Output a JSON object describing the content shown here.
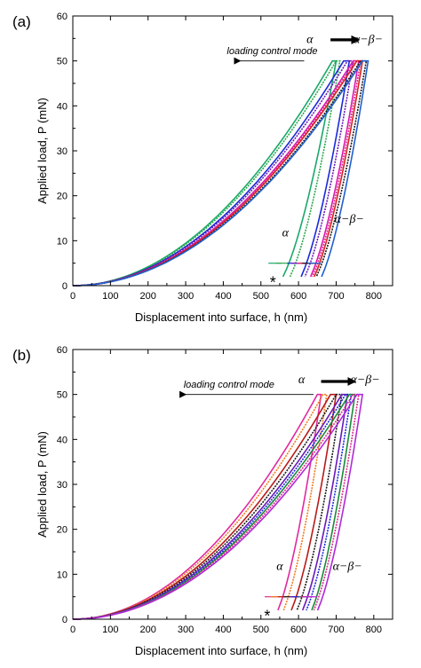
{
  "chart_data": [
    {
      "type": "line",
      "panel_label": "(a)",
      "xlabel": "Displacement into surface, h (nm)",
      "ylabel": "Applied load, P (mN)",
      "xlim": [
        0,
        850
      ],
      "ylim": [
        0,
        60
      ],
      "xticks": [
        0,
        100,
        200,
        300,
        400,
        500,
        600,
        700,
        800
      ],
      "yticks": [
        0,
        10,
        20,
        30,
        40,
        50,
        60
      ],
      "grid": false,
      "legend": "none",
      "annotations": {
        "mode_text": "loading control mode",
        "transition_from": "α",
        "transition_to": "α−β−",
        "unload_alpha": "α",
        "unload_ab": "α−β−",
        "marker": "*"
      },
      "series": [
        {
          "color": "#1aa86a",
          "hmax": 690,
          "hres": 540,
          "hold": 10
        },
        {
          "color": "#2aa84a",
          "hmax": 700,
          "hres": 560,
          "hold": 10
        },
        {
          "color": "#1a2ad8",
          "hmax": 720,
          "hres": 590,
          "hold": 15
        },
        {
          "color": "#6a1ab8",
          "hmax": 730,
          "hres": 600,
          "hold": 15
        },
        {
          "color": "#d81ab0",
          "hmax": 745,
          "hres": 615,
          "hold": 15
        },
        {
          "color": "#e0228a",
          "hmax": 750,
          "hres": 620,
          "hold": 15
        },
        {
          "color": "#d82222",
          "hmax": 755,
          "hres": 625,
          "hold": 15
        },
        {
          "color": "#1a1a1a",
          "hmax": 765,
          "hres": 630,
          "hold": 15
        },
        {
          "color": "#2060d0",
          "hmax": 770,
          "hres": 645,
          "hold": 15
        }
      ]
    },
    {
      "type": "line",
      "panel_label": "(b)",
      "xlabel": "Displacement into surface, h (nm)",
      "ylabel": "Applied load, P (mN)",
      "xlim": [
        0,
        850
      ],
      "ylim": [
        0,
        60
      ],
      "xticks": [
        0,
        100,
        200,
        300,
        400,
        500,
        600,
        700,
        800
      ],
      "yticks": [
        0,
        10,
        20,
        30,
        40,
        50,
        60
      ],
      "grid": false,
      "legend": "none",
      "annotations": {
        "mode_text": "loading control mode",
        "transition_from": "α",
        "transition_to": "α−β−",
        "unload_alpha": "α",
        "unload_ab": "α−β−",
        "marker": "*"
      },
      "series": [
        {
          "color": "#e02aa0",
          "hmax": 650,
          "hres": 530,
          "hold": 10
        },
        {
          "color": "#f07a20",
          "hmax": 665,
          "hres": 545,
          "hold": 10
        },
        {
          "color": "#b81a1a",
          "hmax": 685,
          "hres": 565,
          "hold": 15
        },
        {
          "color": "#1a1a1a",
          "hmax": 700,
          "hres": 580,
          "hold": 15
        },
        {
          "color": "#6a1ab8",
          "hmax": 715,
          "hres": 595,
          "hold": 15
        },
        {
          "color": "#1a2ad8",
          "hmax": 725,
          "hres": 605,
          "hold": 15
        },
        {
          "color": "#1a8a3a",
          "hmax": 735,
          "hres": 620,
          "hold": 15
        },
        {
          "color": "#e02a8a",
          "hmax": 745,
          "hres": 625,
          "hold": 15
        },
        {
          "color": "#b02ad8",
          "hmax": 755,
          "hres": 635,
          "hold": 15
        }
      ]
    }
  ]
}
